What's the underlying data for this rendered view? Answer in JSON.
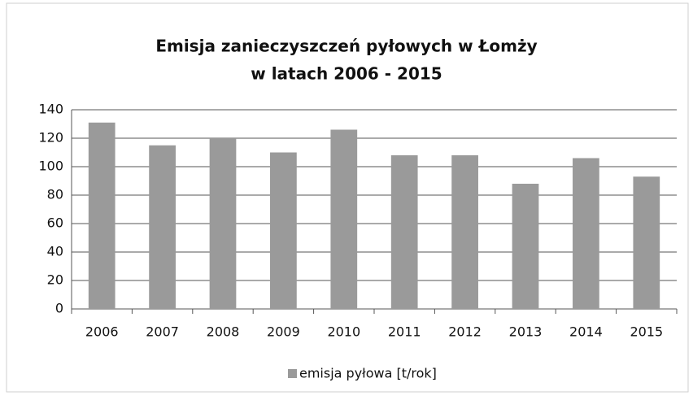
{
  "chart_data": {
    "type": "bar",
    "title": [
      "Emisja zanieczyszczeń pyłowych w Łomży",
      "w latach 2006 - 2015"
    ],
    "categories": [
      "2006",
      "2007",
      "2008",
      "2009",
      "2010",
      "2011",
      "2012",
      "2013",
      "2014",
      "2015"
    ],
    "series": [
      {
        "name": "emisja pyłowa [t/rok]",
        "color": "#9a9a9a",
        "values": [
          131,
          115,
          120,
          110,
          126,
          108,
          108,
          88,
          106,
          93
        ]
      }
    ],
    "ylim": [
      0,
      140
    ],
    "yticks": [
      0,
      20,
      40,
      60,
      80,
      100,
      120,
      140
    ],
    "grid": true,
    "legend": "bottom"
  }
}
